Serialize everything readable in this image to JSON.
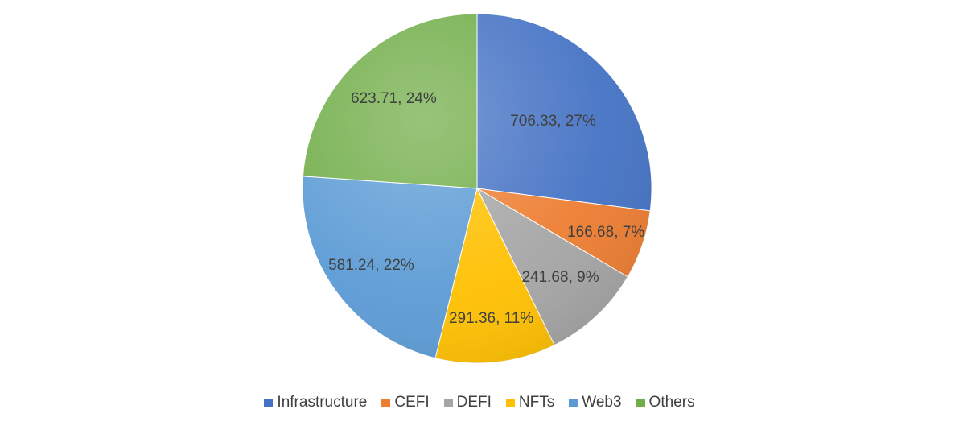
{
  "chart_data": {
    "type": "pie",
    "categories": [
      "Infrastructure",
      "CEFI",
      "DEFI",
      "NFTs",
      "Web3",
      "Others"
    ],
    "values": [
      706.33,
      166.68,
      241.68,
      291.36,
      581.24,
      623.71
    ],
    "data_labels": [
      "706.33, 27%",
      "166.68, 7%",
      "241.68, 9%",
      "291.36, 11%",
      "581.24, 22%",
      "623.71, 24%"
    ],
    "colors": [
      "#4472C4",
      "#ED7D31",
      "#A5A5A5",
      "#FFC000",
      "#5B9BD5",
      "#70AD47"
    ],
    "start_angle": "12 o'clock, clockwise",
    "legend_position": "bottom"
  }
}
